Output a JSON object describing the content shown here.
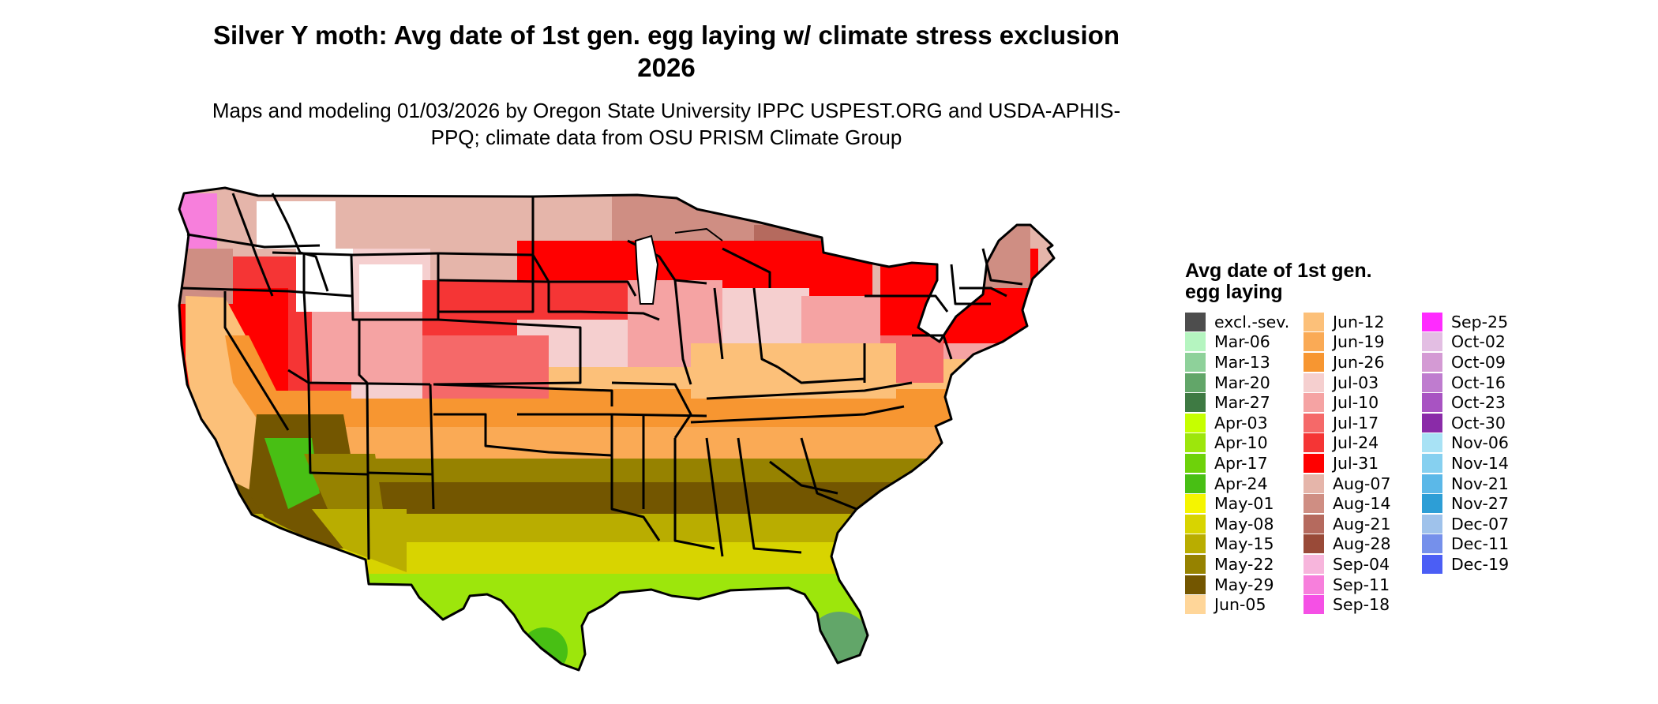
{
  "title": "Silver Y moth: Avg date of 1st gen. egg laying w/ climate stress exclusion 2026",
  "subtitle": "Maps and modeling 01/03/2026 by Oregon State University IPPC USPEST.ORG and USDA-APHIS-PPQ; climate data from OSU PRISM Climate Group",
  "legend": {
    "title": "Avg date of 1st gen. egg laying",
    "columns": [
      [
        {
          "label": "excl.-sev.",
          "color": "#4d4d4d"
        },
        {
          "label": "Mar-06",
          "color": "#b5f5c0"
        },
        {
          "label": "Mar-13",
          "color": "#8ed19a"
        },
        {
          "label": "Mar-20",
          "color": "#62a669"
        },
        {
          "label": "Mar-27",
          "color": "#3e7a43"
        },
        {
          "label": "Apr-03",
          "color": "#c6ff00"
        },
        {
          "label": "Apr-10",
          "color": "#9de60c"
        },
        {
          "label": "Apr-17",
          "color": "#6ed20a"
        },
        {
          "label": "Apr-24",
          "color": "#48bf14"
        },
        {
          "label": "May-01",
          "color": "#f5f500"
        },
        {
          "label": "May-08",
          "color": "#d8d400"
        },
        {
          "label": "May-15",
          "color": "#b9ad00"
        },
        {
          "label": "May-22",
          "color": "#968200"
        },
        {
          "label": "May-29",
          "color": "#735600"
        },
        {
          "label": "Jun-05",
          "color": "#ffd699"
        }
      ],
      [
        {
          "label": "Jun-12",
          "color": "#fcc079"
        },
        {
          "label": "Jun-19",
          "color": "#faaa55"
        },
        {
          "label": "Jun-26",
          "color": "#f79631"
        },
        {
          "label": "Jul-03",
          "color": "#f5cfcf"
        },
        {
          "label": "Jul-10",
          "color": "#f5a3a3"
        },
        {
          "label": "Jul-17",
          "color": "#f56969"
        },
        {
          "label": "Jul-24",
          "color": "#f53535"
        },
        {
          "label": "Jul-31",
          "color": "#ff0000"
        },
        {
          "label": "Aug-07",
          "color": "#e5b5aa"
        },
        {
          "label": "Aug-14",
          "color": "#cf8e83"
        },
        {
          "label": "Aug-21",
          "color": "#b56a5e"
        },
        {
          "label": "Aug-28",
          "color": "#994a38"
        },
        {
          "label": "Sep-04",
          "color": "#f7b5dc"
        },
        {
          "label": "Sep-11",
          "color": "#f77fdc"
        },
        {
          "label": "Sep-18",
          "color": "#f550e5"
        }
      ],
      [
        {
          "label": "Sep-25",
          "color": "#ff2bff"
        },
        {
          "label": "Oct-02",
          "color": "#e3bee3"
        },
        {
          "label": "Oct-09",
          "color": "#d49ad4"
        },
        {
          "label": "Oct-16",
          "color": "#bf7ccf"
        },
        {
          "label": "Oct-23",
          "color": "#a853c2"
        },
        {
          "label": "Oct-30",
          "color": "#8a2ba8"
        },
        {
          "label": "Nov-06",
          "color": "#a8e2f5"
        },
        {
          "label": "Nov-14",
          "color": "#86d0f0"
        },
        {
          "label": "Nov-21",
          "color": "#5bb8e8"
        },
        {
          "label": "Nov-27",
          "color": "#2d9ed6"
        },
        {
          "label": "Dec-07",
          "color": "#9fc2eb"
        },
        {
          "label": "Dec-11",
          "color": "#7590eb"
        },
        {
          "label": "Dec-19",
          "color": "#4b5ef5"
        }
      ]
    ]
  }
}
